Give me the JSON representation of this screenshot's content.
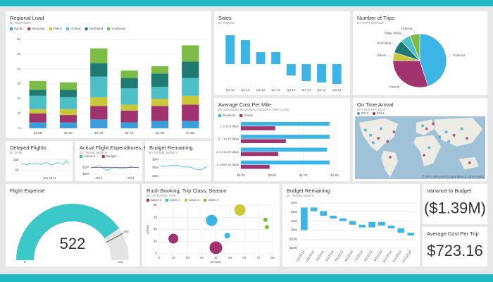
{
  "chart_data": [
    {
      "type": "bar",
      "stacked": true,
      "title": "Regional Load",
      "subtitle": "BY TERRITORY",
      "categories": [
        "$1.6B",
        "$1.6B",
        "$1.7B",
        "$1.7B",
        "$1.8B",
        "$1.8B"
      ],
      "series": [
        {
          "name": "Pacific",
          "color": "#3c9fdc",
          "values": [
            4,
            4,
            6,
            4,
            5,
            5
          ]
        },
        {
          "name": "Mountain",
          "color": "#a0336e",
          "values": [
            6,
            5,
            9,
            8,
            10,
            11
          ]
        },
        {
          "name": "Plains",
          "color": "#c8c83a",
          "values": [
            3,
            4,
            6,
            4,
            5,
            6
          ]
        },
        {
          "name": "Central",
          "color": "#4dbfc6",
          "values": [
            9,
            8,
            14,
            11,
            8,
            12
          ]
        },
        {
          "name": "Northeast",
          "color": "#1f7a72",
          "values": [
            4,
            5,
            9,
            7,
            9,
            11
          ]
        },
        {
          "name": "Southeast",
          "color": "#7dbb47",
          "values": [
            6,
            5,
            10,
            5,
            5,
            11
          ]
        }
      ],
      "ylim": [
        0,
        60
      ],
      "yticks": [
        0,
        10,
        20,
        30,
        40,
        50,
        60
      ],
      "grid": true
    },
    {
      "type": "bar",
      "title": "Sales",
      "subtitle": "BY PERIOD",
      "categories": [
        "Q4 12",
        "Q1 13",
        "Q2 13",
        "Q3 13",
        "Q4 13",
        "Q1 14",
        "Q2 14",
        "Q3 14"
      ],
      "values": [
        41,
        34,
        17,
        17,
        -16,
        -24,
        -26,
        -28
      ],
      "color": "#3cb4e5",
      "ylim": [
        -30,
        45
      ]
    },
    {
      "type": "pie",
      "title": "Number of Trips",
      "subtitle": "BY TRIP PURPOSE",
      "categories": [
        "External",
        "Internal",
        "Others",
        "Recruiting",
        "Trade Show",
        "Training"
      ],
      "values": [
        45,
        30,
        5,
        8,
        6,
        6
      ],
      "colors": [
        "#3cb4e5",
        "#a0336e",
        "#c8c83a",
        "#1f7a72",
        "#4dbfc6",
        "#7dbb47"
      ]
    },
    {
      "type": "bar",
      "horizontal": true,
      "title": "Average Cost Per Mile",
      "subtitle": "BY ADVANCED BOOKING CATEGORY, TRIP CLASS",
      "categories": [
        "1. 0 to 6 days",
        "2. 7 to 13 days",
        "3. 14 to 20 days",
        "4. Over 21 days"
      ],
      "series": [
        {
          "name": "Business",
          "color": "#3cb4e5",
          "values": [
            1.42,
            1.42,
            1.38,
            1.42
          ]
        },
        {
          "name": "Coach",
          "color": "#a0336e",
          "values": [
            0.55,
            0.72,
            0.6,
            0.46
          ]
        }
      ],
      "xlim": [
        0,
        1.5
      ],
      "xticks": [
        {
          "value": 0,
          "label": "$0.00"
        },
        {
          "value": 0.5,
          "label": "$0.50"
        },
        {
          "value": 1,
          "label": "$1.00"
        },
        {
          "value": 1.5,
          "label": "$1.50"
        }
      ],
      "grid": true
    },
    {
      "type": "map",
      "title": "On Time Arrival",
      "subtitle": "BY COUNTRY, YEAR",
      "series": [
        {
          "name": "2013",
          "color": "#3c9fdc"
        },
        {
          "name": "2014",
          "color": "#a0336e"
        }
      ],
      "attribution": "© 2014 Microsoft Corporation © 2014 Nokia"
    },
    {
      "type": "line",
      "title": "Delayed Flights",
      "subtitle": "BY DATE",
      "x": [
        2013.5,
        2013.55,
        2013.6,
        2013.65,
        2013.7,
        2013.75,
        2013.8,
        2013.85,
        2013.9,
        2013.95,
        2014,
        2014.05,
        2014.1,
        2014.15,
        2014.2,
        2014.25,
        2014.3,
        2014.35
      ],
      "values": [
        7800,
        8200,
        7600,
        8400,
        7900,
        8600,
        8100,
        7700,
        8300,
        8800,
        8000,
        7500,
        8200,
        8700,
        8100,
        7900,
        9600,
        8300
      ],
      "color": "#3cb4e5",
      "xlim": [
        2013.5,
        2014.35
      ],
      "ylim": [
        3000,
        11000
      ],
      "yticks": [
        {
          "value": 5000,
          "label": "5K"
        },
        {
          "value": 10000,
          "label": "10K"
        }
      ],
      "xticks": [
        {
          "value": 2014,
          "label": "Jan 2014"
        }
      ],
      "grid": true
    },
    {
      "type": "line",
      "title": "Actual Flight Expenditures, Bu...",
      "subtitle": "BY TRAVEL MONTH",
      "x": [
        2011.5,
        2012,
        2012.5,
        2013,
        2013.5,
        2014,
        2014.5
      ],
      "series": [
        {
          "name": "Actual F...",
          "color": "#3cb4e5",
          "values": [
            1.8,
            2.6,
            1.2,
            2.0,
            1.6,
            2.2,
            1.9
          ]
        },
        {
          "name": "Budget...",
          "color": "#a0336e",
          "values": [
            2.0,
            2.0,
            2.0,
            2.0,
            2.0,
            2.0,
            2.0
          ]
        }
      ],
      "xlim": [
        2011.5,
        2014.5
      ],
      "ylim": [
        0,
        4
      ],
      "yticks": [
        {
          "value": 0,
          "label": "$0M"
        },
        {
          "value": 2,
          "label": "$2M"
        }
      ],
      "xticks": [
        2012,
        2014
      ],
      "grid": true
    },
    {
      "type": "line",
      "title": "Budget Remaining",
      "subtitle": "BY TRAVEL MONTH",
      "x": [
        2012,
        2012.25,
        2012.5,
        2012.75,
        2013,
        2013.25,
        2013.5,
        2013.75,
        2014
      ],
      "values": [
        1,
        1,
        1.5,
        1.5,
        0.5,
        0.5,
        -1,
        -1,
        1
      ],
      "color": "#3cb4e5",
      "xlim": [
        2012,
        2014
      ],
      "ylim": [
        -6,
        6
      ],
      "yticks": [
        {
          "value": 5,
          "label": "$5M"
        },
        {
          "value": 0,
          "label": "$0M"
        },
        {
          "value": -5,
          "label": "-$5M"
        }
      ],
      "grid": true
    },
    {
      "type": "gauge",
      "title": "Flight Expense",
      "value": 522,
      "min": 0,
      "max": 645,
      "target": 545,
      "color": "#3cc8c8"
    },
    {
      "type": "bubble",
      "title": "Rush Booking, Trip Class, Season",
      "subtitle": "BY CATEGORY, TYPE",
      "xlabel": "minutes",
      "ylabel": "values",
      "series": [
        {
          "name": "Class 1",
          "color": "#a0336e",
          "x": [
            10,
            40
          ],
          "values": [
            25,
            10
          ],
          "sizes": [
            7,
            9
          ]
        },
        {
          "name": "Class 2",
          "color": "#3cb4e5",
          "x": [
            37,
            48
          ],
          "values": [
            55,
            30
          ],
          "sizes": [
            8,
            4
          ]
        },
        {
          "name": "Class 3",
          "color": "#c8c83a",
          "x": [
            57
          ],
          "values": [
            72
          ],
          "sizes": [
            8
          ]
        },
        {
          "name": "Class 4",
          "color": "#7dbb47",
          "x": [
            75,
            76
          ],
          "values": [
            56,
            44
          ],
          "sizes": [
            3,
            3
          ]
        }
      ],
      "xlim": [
        0,
        80
      ],
      "xticks": [
        0,
        10,
        20,
        30,
        40,
        50,
        60,
        70,
        80
      ],
      "ylim": [
        0,
        80
      ],
      "yticks": [
        0,
        20,
        40,
        60,
        80
      ],
      "grid": true
    },
    {
      "type": "waterfall",
      "title": "Budget Remaining",
      "subtitle": "BY TRAVEL MONTH",
      "categories": [
        "1/1/2014",
        "2/1/2014",
        "3/1/2014",
        "4/1/2014",
        "5/1/2014",
        "6/1/2014",
        "7/1/2014",
        "8/1/2014",
        "9/1/2014",
        "10/1/2014",
        "11/1/2014",
        "12/1/2014"
      ],
      "values": [
        2.5,
        -0.4,
        -0.5,
        -0.3,
        -0.3,
        -0.4,
        -0.3,
        0.6,
        -0.4,
        -0.3,
        -0.5,
        -0.3
      ],
      "color": "#3cb4e5",
      "ylim": [
        -2,
        3
      ],
      "yticks": [
        {
          "value": 3,
          "label": "$3M"
        },
        {
          "value": 2,
          "label": "$2M"
        },
        {
          "value": 1,
          "label": "$1M"
        },
        {
          "value": 0,
          "label": "$0M"
        },
        {
          "value": -1,
          "label": "($1M)"
        },
        {
          "value": -2,
          "label": "($2M)"
        }
      ],
      "grid": true
    },
    {
      "type": "card",
      "title": "Variance to Budget",
      "value": -1.39,
      "value_label": "($1.39M)"
    },
    {
      "type": "card",
      "title": "Average Cost Per Trip",
      "value": 723.16,
      "value_label": "$723.16"
    }
  ]
}
